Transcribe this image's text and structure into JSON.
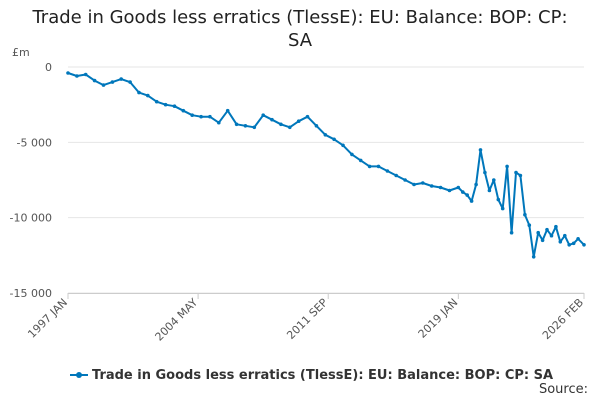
{
  "chart_data": {
    "type": "line",
    "title": "Trade in Goods less erratics (TlessE): EU: Balance: BOP: CP: SA",
    "title_lines": [
      "Trade in Goods less erratics (TlessE): EU: Balance: BOP: CP:",
      "SA"
    ],
    "ylabel": "£m",
    "ylim": [
      -15000,
      0
    ],
    "yticks": [
      0,
      -5000,
      -10000,
      -15000
    ],
    "ytick_labels": [
      "0",
      "-5 000",
      "-10 000",
      "-15 000"
    ],
    "xlim": [
      1997.0,
      2026.083
    ],
    "xticks": [
      1997.0,
      2004.333,
      2011.667,
      2019.0,
      2026.083
    ],
    "xtick_labels": [
      "1997 JAN",
      "2004 MAY",
      "2011 SEP",
      "2019 JAN",
      "2026 FEB"
    ],
    "grid": true,
    "legend_position": "bottom",
    "source_label": "Source:",
    "series": [
      {
        "name": "Trade in Goods less erratics (TlessE): EU: Balance: BOP: CP: SA",
        "color": "#0077bb",
        "x": [
          1997.0,
          1997.5,
          1998.0,
          1998.5,
          1999.0,
          1999.5,
          2000.0,
          2000.5,
          2001.0,
          2001.5,
          2002.0,
          2002.5,
          2003.0,
          2003.5,
          2004.0,
          2004.5,
          2005.0,
          2005.5,
          2006.0,
          2006.5,
          2007.0,
          2007.5,
          2008.0,
          2008.5,
          2009.0,
          2009.5,
          2010.0,
          2010.5,
          2011.0,
          2011.5,
          2012.0,
          2012.5,
          2013.0,
          2013.5,
          2014.0,
          2014.5,
          2015.0,
          2015.5,
          2016.0,
          2016.5,
          2017.0,
          2017.5,
          2018.0,
          2018.5,
          2019.0,
          2019.25,
          2019.5,
          2019.75,
          2020.0,
          2020.25,
          2020.5,
          2020.75,
          2021.0,
          2021.25,
          2021.5,
          2021.75,
          2022.0,
          2022.25,
          2022.5,
          2022.75,
          2023.0,
          2023.25,
          2023.5,
          2023.75,
          2024.0,
          2024.25,
          2024.5,
          2024.75,
          2025.0,
          2025.25,
          2025.5,
          2025.75,
          2026.083
        ],
        "values": [
          -400,
          -600,
          -500,
          -900,
          -1200,
          -1000,
          -800,
          -1000,
          -1700,
          -1900,
          -2300,
          -2500,
          -2600,
          -2900,
          -3200,
          -3300,
          -3300,
          -3700,
          -2900,
          -3800,
          -3900,
          -4000,
          -3200,
          -3500,
          -3800,
          -4000,
          -3600,
          -3300,
          -3900,
          -4500,
          -4800,
          -5200,
          -5800,
          -6200,
          -6600,
          -6600,
          -6900,
          -7200,
          -7500,
          -7800,
          -7700,
          -7900,
          -8000,
          -8200,
          -8000,
          -8300,
          -8500,
          -8900,
          -7800,
          -5500,
          -7000,
          -8200,
          -7500,
          -8800,
          -9400,
          -6600,
          -11000,
          -7000,
          -7200,
          -9800,
          -10500,
          -12600,
          -11000,
          -11500,
          -10800,
          -11200,
          -10600,
          -11600,
          -11200,
          -11800,
          -11700,
          -11400,
          -11800
        ]
      }
    ]
  }
}
